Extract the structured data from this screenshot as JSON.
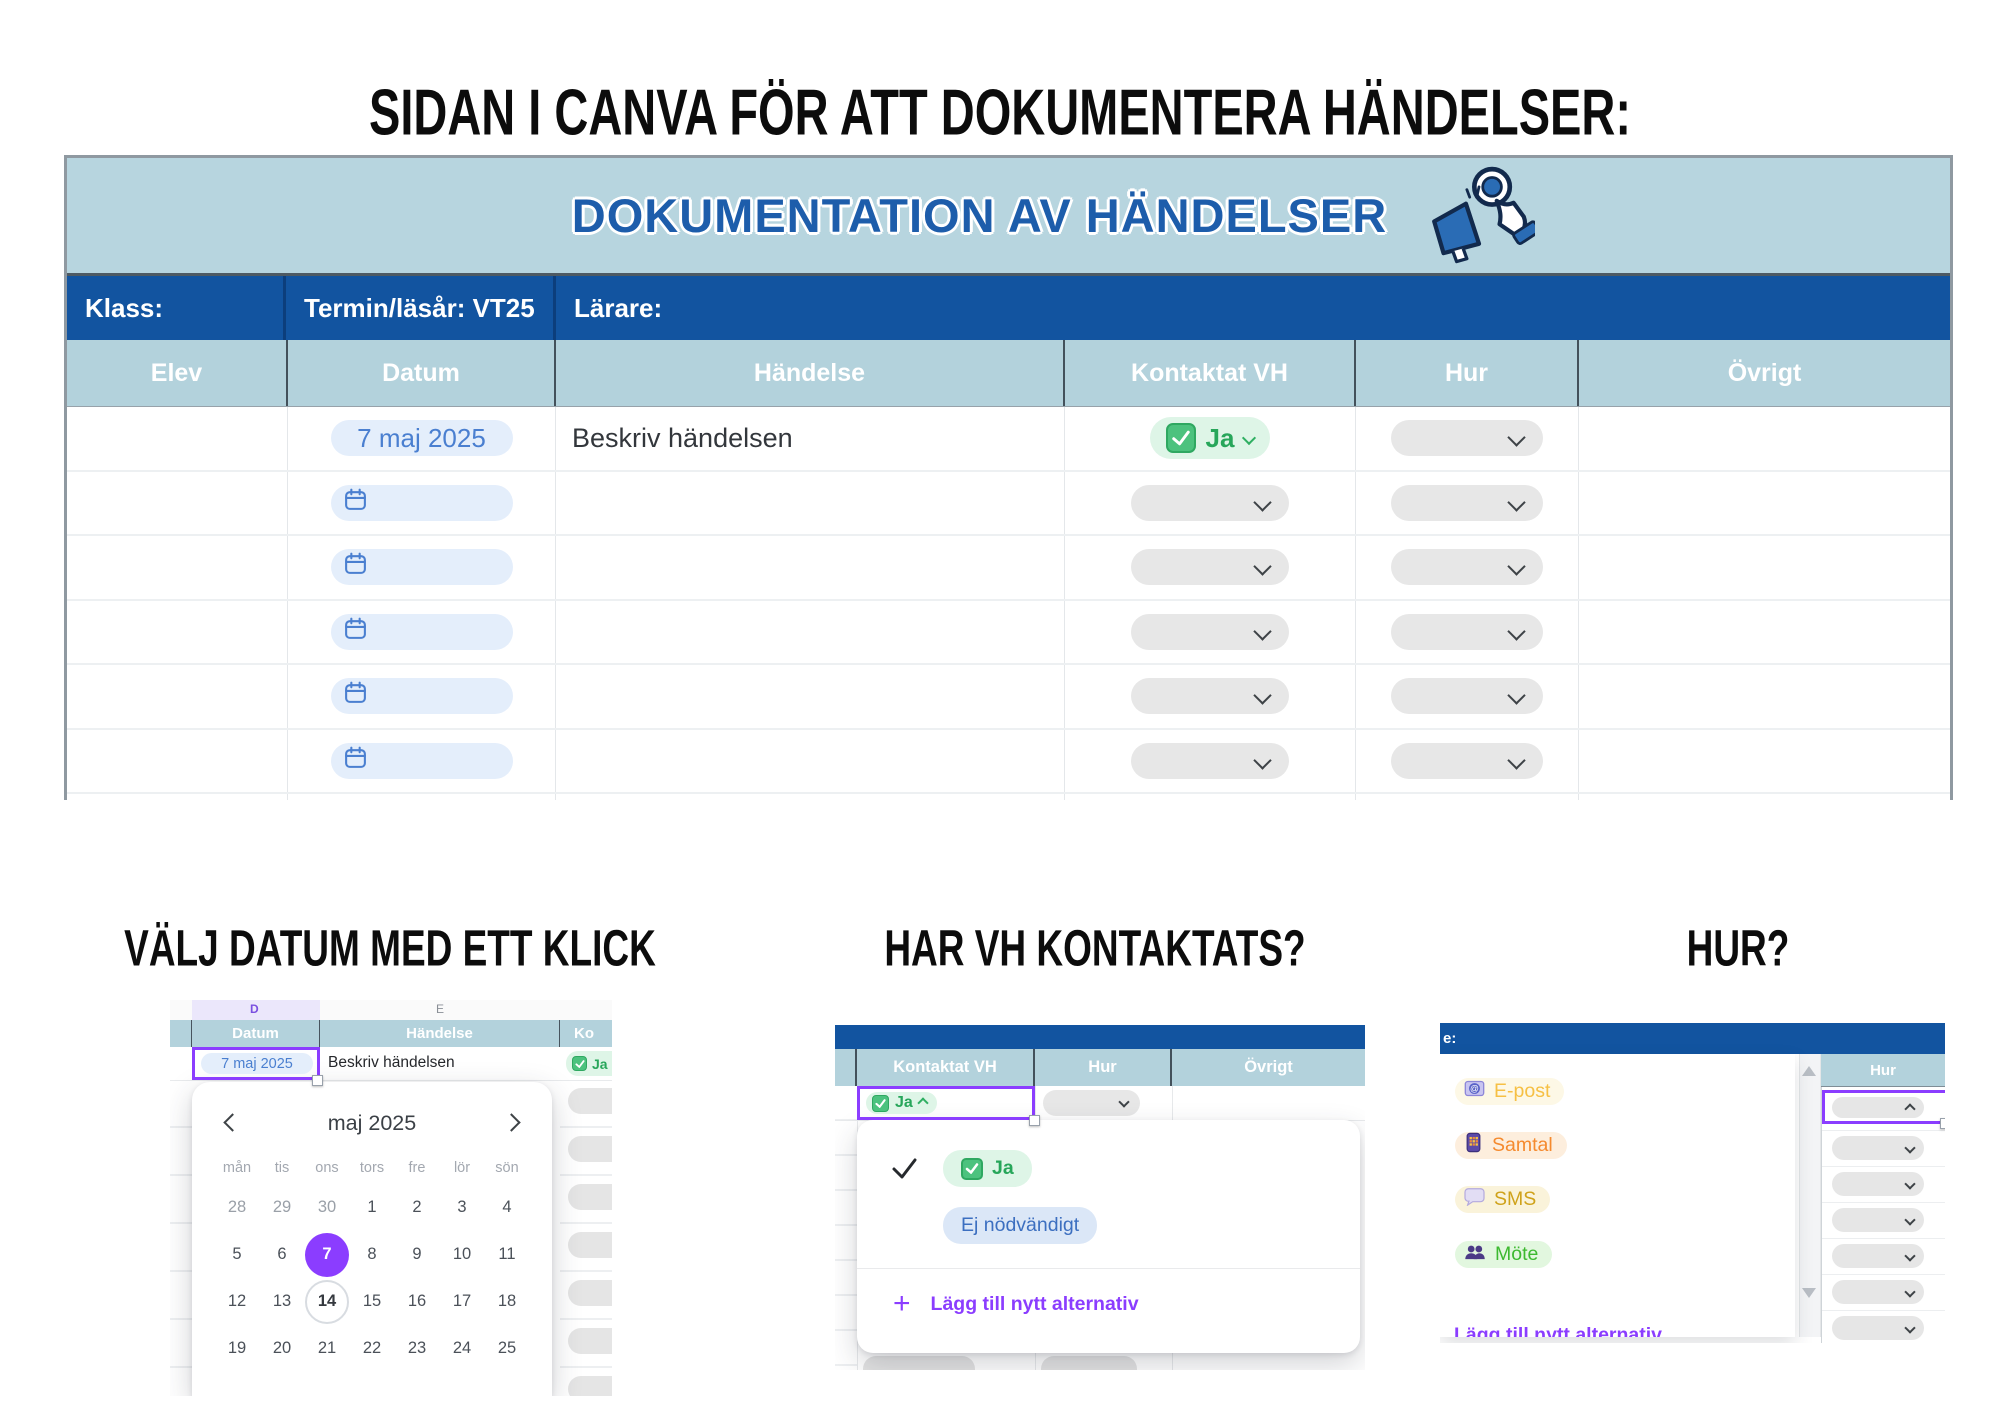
{
  "page_title": "SIDAN I CANVA FÖR ATT DOKUMENTERA HÄNDELSER:",
  "colors": {
    "accent_purple": "#8b3dff",
    "header_dark_blue": "#1254a0",
    "header_light_blue": "#b3d2dc",
    "banner_blue": "#b7d5df",
    "title_blue": "#1d5dab",
    "success_green": "#27a65a",
    "date_blue": "#4a7fd0"
  },
  "table": {
    "banner_title": "DOKUMENTATION AV HÄNDELSER",
    "banner_icon": "megaphone-click-icon",
    "info_cells": {
      "klass": "Klass:",
      "termin": "Termin/läsår: VT25",
      "larare": "Lärare:"
    },
    "columns": [
      "Elev",
      "Datum",
      "Händelse",
      "Kontaktat VH",
      "Hur",
      "Övrigt"
    ],
    "first_row": {
      "datum": "7 maj 2025",
      "handelse": "Beskriv händelsen",
      "kontaktat_vh": "Ja"
    },
    "empty_rows": 5
  },
  "sections": {
    "datum": {
      "title": "VÄLJ DATUM MED ETT KLICK",
      "column_letters": [
        "D",
        "E"
      ],
      "headers": {
        "datum": "Datum",
        "handelse": "Händelse",
        "kontaktat_fragment": "Ko"
      },
      "row": {
        "datum": "7 maj 2025",
        "handelse": "Beskriv händelsen",
        "kontaktat_vh": "Ja"
      },
      "calendar": {
        "month_label": "maj 2025",
        "day_names": [
          "mån",
          "tis",
          "ons",
          "tors",
          "fre",
          "lör",
          "sön"
        ],
        "weeks": [
          [
            "28",
            "29",
            "30",
            "1",
            "2",
            "3",
            "4"
          ],
          [
            "5",
            "6",
            "7",
            "8",
            "9",
            "10",
            "11"
          ],
          [
            "12",
            "13",
            "14",
            "15",
            "16",
            "17",
            "18"
          ],
          [
            "19",
            "20",
            "21",
            "22",
            "23",
            "24",
            "25"
          ]
        ],
        "selected_day": "7",
        "outlined_day": "14"
      }
    },
    "kontaktat": {
      "title": "HAR VH KONTAKTATS?",
      "headers": [
        "Kontaktat VH",
        "Hur",
        "Övrigt"
      ],
      "cell_value": "Ja",
      "dropdown": {
        "options": [
          {
            "label": "Ja",
            "style": "green",
            "checked": true
          },
          {
            "label": "Ej nödvändigt",
            "style": "blue",
            "checked": false
          }
        ],
        "add_label": "Lägg till nytt alternativ"
      }
    },
    "hur": {
      "title": "HUR?",
      "topbar_fragment": "e:",
      "column_header": "Hur",
      "dropdown": {
        "options": [
          {
            "label": "E-post",
            "icon": "email-icon"
          },
          {
            "label": "Samtal",
            "icon": "phone-keypad-icon"
          },
          {
            "label": "SMS",
            "icon": "speech-bubble-icon"
          },
          {
            "label": "Möte",
            "icon": "people-icon"
          }
        ],
        "add_label": "Lägg till nytt alternativ"
      }
    }
  }
}
